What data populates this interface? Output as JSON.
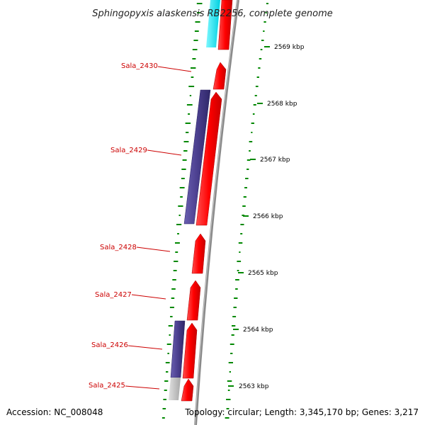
{
  "title": "Sphingopyxis alaskensis RB2256, complete genome",
  "accession": "Accession: NC_008048",
  "topology": "Topology: circular; Length: 3,345,170 bp; Genes: 3,217",
  "ticks": [
    {
      "label": "2569 kbp"
    },
    {
      "label": "2568 kbp"
    },
    {
      "label": "2567 kbp"
    },
    {
      "label": "2566 kbp"
    },
    {
      "label": "2565 kbp"
    },
    {
      "label": "2564 kbp"
    },
    {
      "label": "2563 kbp"
    }
  ],
  "gene_labels": [
    "Sala_2430",
    "Sala_2429",
    "Sala_2428",
    "Sala_2427",
    "Sala_2426",
    "Sala_2425"
  ],
  "colors": {
    "cds": "#ff0000",
    "cds_outline": "#b00000",
    "blast_hit": "#4b3f8f",
    "blast_light": "#00e5ee",
    "blast_grey": "#bdbdbd",
    "gc_dots": "#008800",
    "label": "#cc0000",
    "backbone": "#8a8a8a"
  }
}
